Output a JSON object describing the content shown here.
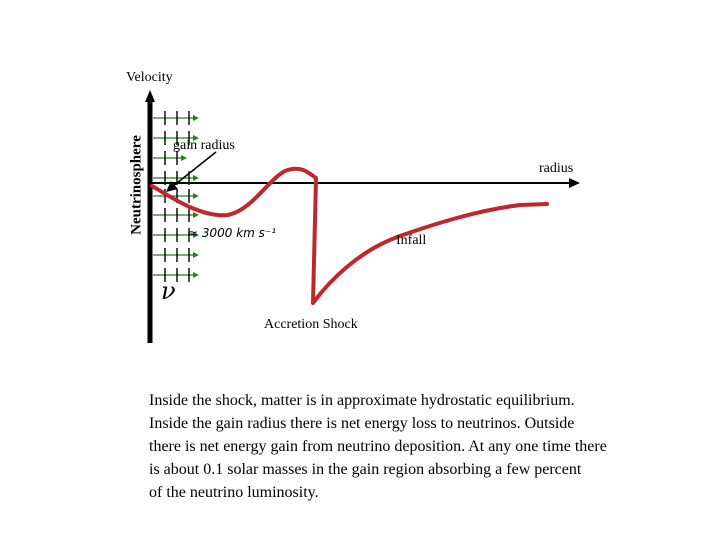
{
  "diagram": {
    "y_axis_label": "Velocity",
    "vertical_label": "Neutrinosphere",
    "x_axis_label": "radius",
    "gain_radius_label": "gain radius",
    "infall_label": "Infall",
    "shock_label": "Accretion Shock",
    "velocity_note": "≈ 3000 km s⁻¹",
    "neutrino_symbol": "ν",
    "curve_color": "#c0262d",
    "arrow_color": "#2a7a2a",
    "axis_color": "#000000"
  },
  "caption": {
    "lines": [
      "Inside the shock, matter is in approximate hydrostatic equilibrium.",
      "Inside the gain radius there is net energy loss to neutrinos. Outside",
      "there is net energy gain from neutrino deposition. At any one time there",
      "is about 0.1 solar masses in the gain region absorbing a few percent",
      "of the neutrino luminosity."
    ]
  }
}
